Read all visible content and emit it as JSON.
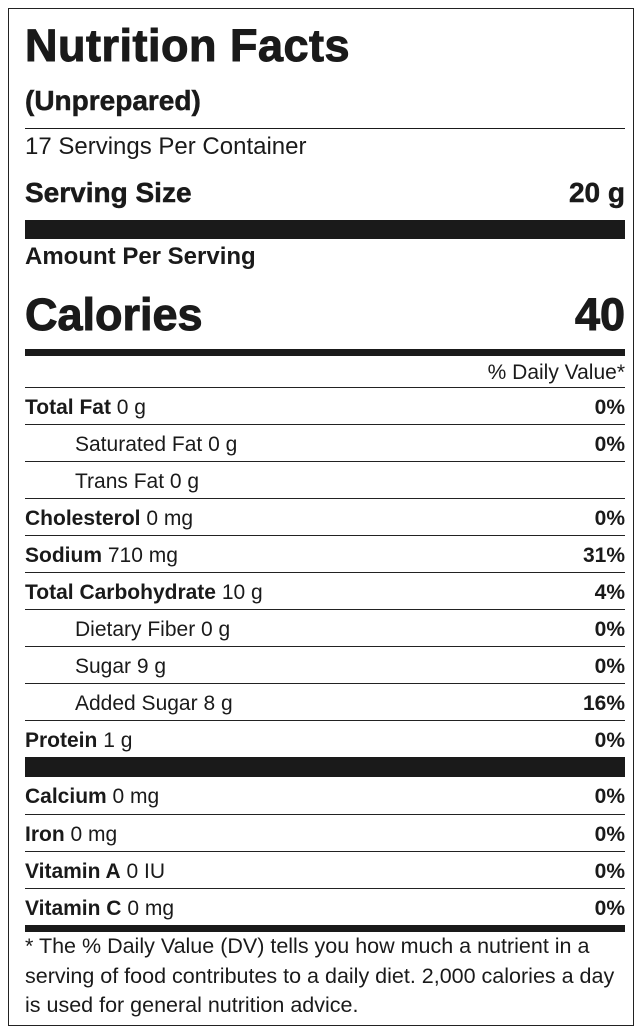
{
  "header": {
    "title": "Nutrition Facts",
    "subtitle": "(Unprepared)",
    "servings": "17 Servings Per Container",
    "serving_size_label": "Serving Size",
    "serving_size_value": "20 g",
    "amount_per_serving": "Amount Per Serving",
    "calories_label": "Calories",
    "calories_value": "40",
    "dv_header": "% Daily Value*"
  },
  "nutrients": [
    {
      "name": "Total Fat",
      "amount": "0 g",
      "dv": "0%",
      "sub": [
        {
          "name": "Saturated Fat",
          "amount": "0 g",
          "dv": "0%"
        },
        {
          "name": "Trans Fat",
          "amount": "0 g"
        }
      ]
    },
    {
      "name": "Cholesterol",
      "amount": "0 mg",
      "dv": "0%"
    },
    {
      "name": "Sodium",
      "amount": "710 mg",
      "dv": "31%"
    },
    {
      "name": "Total Carbohydrate",
      "amount": "10 g",
      "dv": "4%",
      "sub": [
        {
          "name": "Dietary Fiber",
          "amount": "0 g",
          "dv": "0%"
        },
        {
          "name": "Sugar",
          "amount": "9 g",
          "dv": "0%"
        },
        {
          "name": "Added Sugar",
          "amount": "8 g",
          "dv": "16%"
        }
      ]
    },
    {
      "name": "Protein",
      "amount": "1 g",
      "dv": "0%"
    }
  ],
  "minerals": [
    {
      "name": "Calcium",
      "amount": "0 mg",
      "dv": "0%"
    },
    {
      "name": "Iron",
      "amount": "0 mg",
      "dv": "0%"
    },
    {
      "name": "Vitamin A",
      "amount": "0 IU",
      "dv": "0%"
    },
    {
      "name": "Vitamin C",
      "amount": "0 mg",
      "dv": "0%"
    }
  ],
  "footnote": "* The % Daily Value (DV) tells you how much a nutrient in a serving of food contributes to a daily diet. 2,000 calories a day is used for general nutrition advice."
}
